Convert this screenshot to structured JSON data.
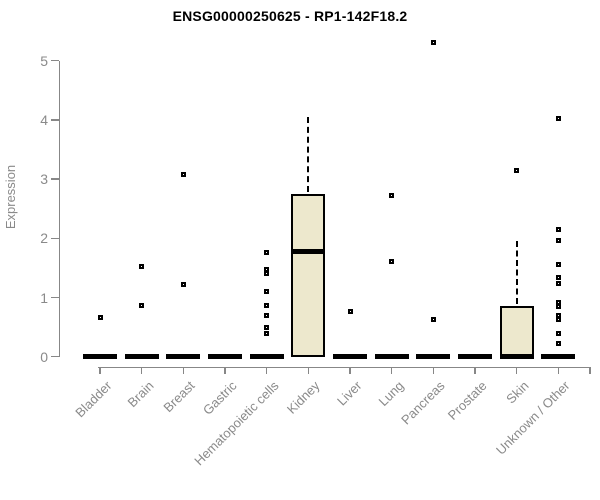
{
  "chart_data": {
    "type": "boxplot",
    "title": "ENSG00000250625 - RP1-142F18.2",
    "xlabel": "",
    "ylabel": "Expression",
    "ylim": [
      0,
      5
    ],
    "yticks": [
      0,
      1,
      2,
      3,
      4,
      5
    ],
    "grid": false,
    "legend": false,
    "categories": [
      "Bladder",
      "Brain",
      "Breast",
      "Gastric",
      "Hematopoietic cells",
      "Kidney",
      "Liver",
      "Lung",
      "Pancreas",
      "Prostate",
      "Skin",
      "Unknown / Other"
    ],
    "boxes": [
      {
        "category": "Bladder",
        "q1": 0,
        "median": 0,
        "q3": 0,
        "whisker_low": 0,
        "whisker_high": 0,
        "outliers": [
          0.67
        ]
      },
      {
        "category": "Brain",
        "q1": 0,
        "median": 0,
        "q3": 0,
        "whisker_low": 0,
        "whisker_high": 0,
        "outliers": [
          1.53,
          0.86
        ]
      },
      {
        "category": "Breast",
        "q1": 0,
        "median": 0,
        "q3": 0,
        "whisker_low": 0,
        "whisker_high": 0,
        "outliers": [
          3.07,
          1.22
        ]
      },
      {
        "category": "Gastric",
        "q1": 0,
        "median": 0,
        "q3": 0,
        "whisker_low": 0,
        "whisker_high": 0,
        "outliers": []
      },
      {
        "category": "Hematopoietic cells",
        "q1": 0,
        "median": 0,
        "q3": 0,
        "whisker_low": 0,
        "whisker_high": 0,
        "outliers": [
          1.76,
          1.48,
          1.41,
          1.1,
          0.86,
          0.69,
          0.49,
          0.39
        ]
      },
      {
        "category": "Kidney",
        "q1": 0,
        "median": 1.78,
        "q3": 2.75,
        "whisker_low": 0,
        "whisker_high": 4.05,
        "outliers": []
      },
      {
        "category": "Liver",
        "q1": 0,
        "median": 0,
        "q3": 0,
        "whisker_low": 0,
        "whisker_high": 0,
        "outliers": [
          0.77
        ]
      },
      {
        "category": "Lung",
        "q1": 0,
        "median": 0,
        "q3": 0,
        "whisker_low": 0,
        "whisker_high": 0,
        "outliers": [
          2.73,
          1.6
        ]
      },
      {
        "category": "Pancreas",
        "q1": 0,
        "median": 0,
        "q3": 0,
        "whisker_low": 0,
        "whisker_high": 0,
        "outliers": [
          5.31,
          0.63
        ]
      },
      {
        "category": "Prostate",
        "q1": 0,
        "median": 0,
        "q3": 0,
        "whisker_low": 0,
        "whisker_high": 0,
        "outliers": []
      },
      {
        "category": "Skin",
        "q1": 0,
        "median": 0,
        "q3": 0.86,
        "whisker_low": 0,
        "whisker_high": 1.96,
        "outliers": [
          3.15
        ]
      },
      {
        "category": "Unknown / Other",
        "q1": 0,
        "median": 0,
        "q3": 0,
        "whisker_low": 0,
        "whisker_high": 0,
        "outliers": [
          4.03,
          2.15,
          1.96,
          1.55,
          1.33,
          1.24,
          0.92,
          0.85,
          0.7,
          0.62,
          0.4,
          0.23
        ]
      }
    ],
    "colors": {
      "box_fill": "#EDE8CD",
      "box_border": "#000000",
      "median": "#000000",
      "outlier": "#000000",
      "axis": "#878787",
      "tick_label": "#8a8a8a",
      "title": "#000000",
      "background": "#ffffff"
    }
  }
}
